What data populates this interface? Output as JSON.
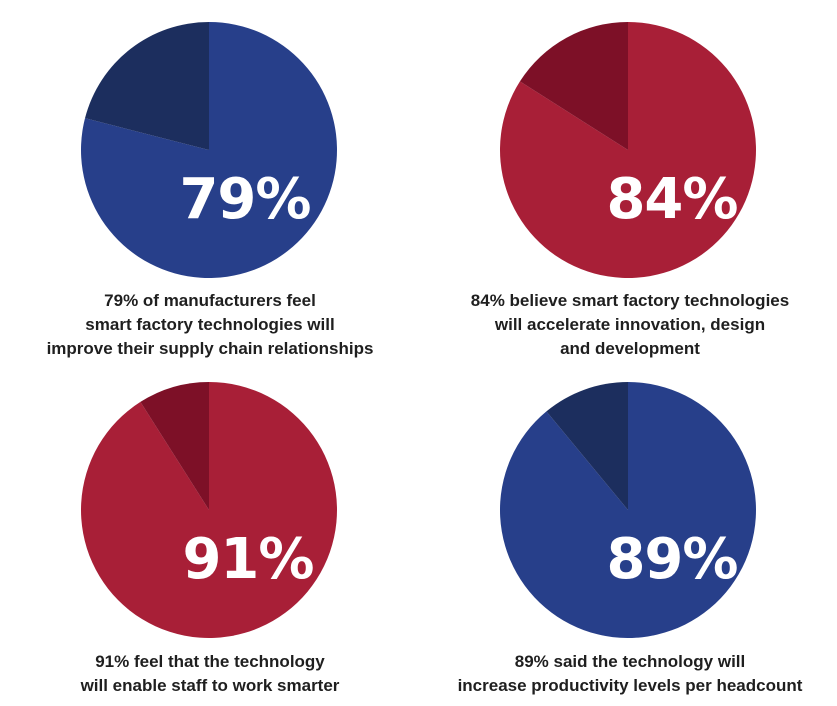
{
  "colors": {
    "blue_main": "#273f8a",
    "blue_dark": "#1c2e5e",
    "red_main": "#a81f37",
    "red_dark": "#7d1027",
    "text": "#1f1f1f",
    "value_text": "#ffffff"
  },
  "chart_data": [
    {
      "type": "pie",
      "color_theme": "blue",
      "values": [
        79,
        21
      ],
      "display_value": "79%",
      "caption_lines": [
        "79% of manufacturers feel",
        "smart factory technologies will",
        "improve their supply chain relationships"
      ]
    },
    {
      "type": "pie",
      "color_theme": "red",
      "values": [
        84,
        16
      ],
      "display_value": "84%",
      "caption_lines": [
        "84% believe smart factory technologies",
        "will accelerate innovation, design",
        "and development"
      ]
    },
    {
      "type": "pie",
      "color_theme": "red",
      "values": [
        91,
        9
      ],
      "display_value": "91%",
      "caption_lines": [
        "91% feel that the technology",
        "will enable staff to work smarter"
      ]
    },
    {
      "type": "pie",
      "color_theme": "blue",
      "values": [
        89,
        11
      ],
      "display_value": "89%",
      "caption_lines": [
        "89% said the technology will",
        "increase productivity levels per headcount"
      ]
    }
  ]
}
